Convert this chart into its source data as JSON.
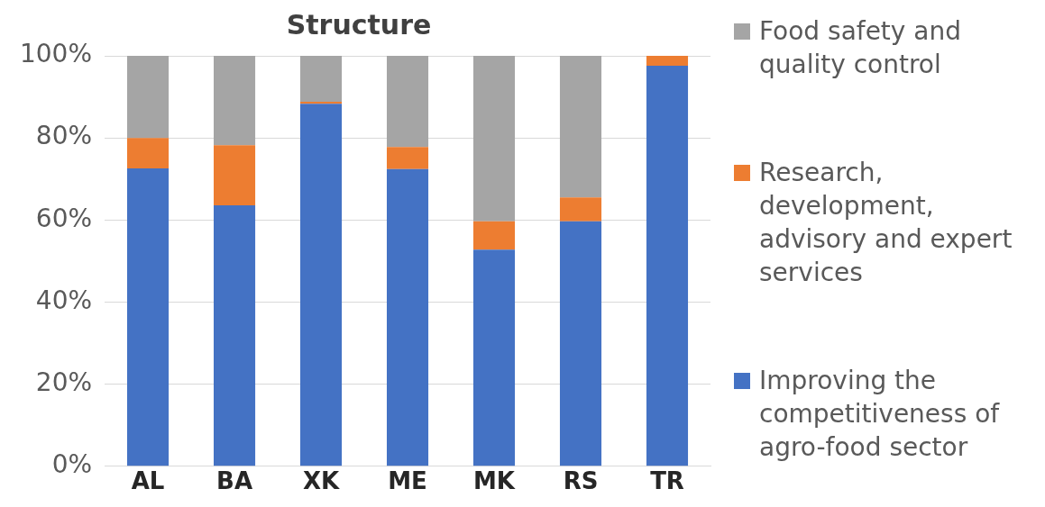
{
  "chart_data": {
    "type": "bar",
    "title": "Structure",
    "stacked": true,
    "categories": [
      "AL",
      "BA",
      "XK",
      "ME",
      "MK",
      "RS",
      "TR"
    ],
    "series": [
      {
        "name": "Improving the competitiveness of agro-food sector",
        "color": "#4472c4",
        "values": [
          72.6,
          63.6,
          88.3,
          72.4,
          52.8,
          59.7,
          97.6
        ]
      },
      {
        "name": "Research, development, advisory and expert services",
        "color": "#ed7d31",
        "values": [
          7.4,
          14.6,
          0.5,
          5.4,
          6.9,
          5.8,
          2.4
        ]
      },
      {
        "name": "Food safety and quality control",
        "color": "#a5a5a5",
        "values": [
          20.0,
          21.8,
          11.2,
          22.2,
          40.3,
          34.5,
          0
        ]
      }
    ],
    "ylim": [
      0,
      100
    ],
    "yticks": [
      {
        "value": 0,
        "label": "0%"
      },
      {
        "value": 20,
        "label": "20%"
      },
      {
        "value": 40,
        "label": "40%"
      },
      {
        "value": 60,
        "label": "60%"
      },
      {
        "value": 80,
        "label": "80%"
      },
      {
        "value": 100,
        "label": "100%"
      }
    ],
    "grid": "y",
    "legend": "right"
  }
}
